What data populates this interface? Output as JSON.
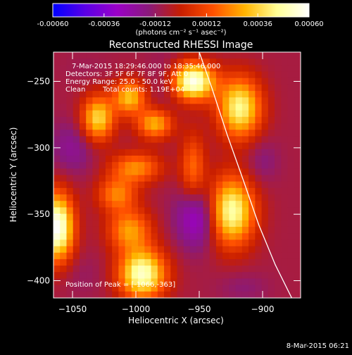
{
  "colorbar": {
    "ticks": [
      "-0.00060",
      "-0.00036",
      "-0.00012",
      "0.00012",
      "0.00036",
      "0.00060"
    ],
    "unit_label": "(photons cm⁻² s⁻¹ asec⁻²)",
    "colors": [
      "#0000ff",
      "#5a00e6",
      "#9b00c8",
      "#8a1a7a",
      "#c81e00",
      "#ff5000",
      "#ffb400",
      "#ffff96",
      "#ffffff"
    ]
  },
  "chart_data": {
    "type": "heatmap",
    "title": "Reconstructed RHESSI Image",
    "xlabel": "Heliocentric X (arcsec)",
    "ylabel": "Heliocentric Y (arcsec)",
    "xlim": [
      -1065,
      -870
    ],
    "ylim": [
      -413,
      -228
    ],
    "xticks": [
      -1050,
      -1000,
      -950,
      -900
    ],
    "yticks": [
      -250,
      -300,
      -350,
      -400
    ],
    "annotations": {
      "time_range": "7-Mar-2015 18:29:46.000 to 18:35:46.000",
      "detectors": "Detectors: 3F 5F 6F 7F 8F 9F, Att 0",
      "energy": "Energy Range: 25.0 - 50.0 keV",
      "method": "Clean",
      "counts": "Total counts: 1.19E+04",
      "peak": "Position of Peak = [-1066,-363]"
    },
    "limb_curve": [
      [
        -950,
        -228
      ],
      [
        -940,
        -255
      ],
      [
        -928,
        -290
      ],
      [
        -915,
        -325
      ],
      [
        -903,
        -358
      ],
      [
        -890,
        -388
      ],
      [
        -877,
        -413
      ]
    ],
    "blobs": [
      {
        "x": -955,
        "y": -250,
        "value": 0.00058,
        "sx": 12,
        "sy": 10
      },
      {
        "x": -1030,
        "y": -278,
        "value": 0.00038,
        "sx": 9,
        "sy": 12
      },
      {
        "x": -1005,
        "y": -262,
        "value": 0.00033,
        "sx": 9,
        "sy": 9
      },
      {
        "x": -985,
        "y": -282,
        "value": 0.0003,
        "sx": 10,
        "sy": 8
      },
      {
        "x": -918,
        "y": -270,
        "value": 0.00045,
        "sx": 12,
        "sy": 16
      },
      {
        "x": -1062,
        "y": -360,
        "value": 0.0006,
        "sx": 9,
        "sy": 18
      },
      {
        "x": -1000,
        "y": -315,
        "value": 0.00024,
        "sx": 14,
        "sy": 8
      },
      {
        "x": -1015,
        "y": -335,
        "value": 0.00022,
        "sx": 11,
        "sy": 9
      },
      {
        "x": -925,
        "y": -348,
        "value": 0.0005,
        "sx": 13,
        "sy": 18
      },
      {
        "x": -1005,
        "y": -362,
        "value": 0.00026,
        "sx": 12,
        "sy": 11
      },
      {
        "x": -995,
        "y": -395,
        "value": 0.00052,
        "sx": 13,
        "sy": 13
      },
      {
        "x": -955,
        "y": -315,
        "value": 0.00018,
        "sx": 7,
        "sy": 18
      },
      {
        "x": -1050,
        "y": -300,
        "value": -0.0002,
        "sx": 12,
        "sy": 14
      },
      {
        "x": -975,
        "y": -250,
        "value": -0.00015,
        "sx": 10,
        "sy": 16
      },
      {
        "x": -950,
        "y": -352,
        "value": -0.00035,
        "sx": 12,
        "sy": 16
      },
      {
        "x": -1045,
        "y": -395,
        "value": -0.00012,
        "sx": 16,
        "sy": 12
      },
      {
        "x": -900,
        "y": -310,
        "value": -0.00016,
        "sx": 9,
        "sy": 12
      },
      {
        "x": -915,
        "y": -405,
        "value": -0.00014,
        "sx": 14,
        "sy": 8
      },
      {
        "x": -1040,
        "y": -240,
        "value": -0.0001,
        "sx": 14,
        "sy": 8
      }
    ],
    "background_value": -8e-05,
    "grid": false
  },
  "footer": {
    "timestamp": "8-Mar-2015 06:21"
  }
}
